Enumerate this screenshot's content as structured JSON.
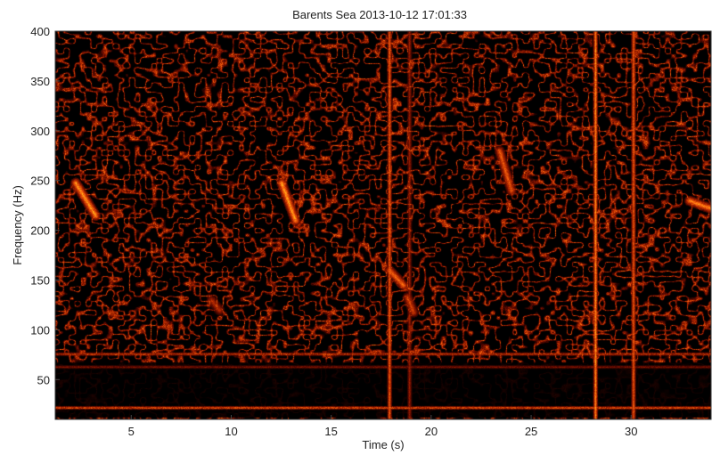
{
  "chart_data": {
    "type": "heatmap",
    "title": "Barents Sea 2013-10-12 17:01:33",
    "xlabel": "Time (s)",
    "ylabel": "Frequency (Hz)",
    "xlim": [
      1.2,
      34
    ],
    "ylim": [
      10,
      400
    ],
    "xticks": [
      5,
      10,
      15,
      20,
      25,
      30
    ],
    "yticks": [
      50,
      100,
      150,
      200,
      250,
      300,
      350,
      400
    ],
    "grid": false,
    "legend": "none",
    "colormap": [
      "#000000",
      "#5a0800",
      "#b42800",
      "#ff6a10",
      "#ffd21e"
    ],
    "background_noise_level": 0.35,
    "low_frequency_quiet_band_hz": [
      12,
      68
    ],
    "tonal_lines": [
      {
        "frequency_hz": 76,
        "intensity": 0.7
      },
      {
        "frequency_hz": 63,
        "intensity": 0.45
      },
      {
        "frequency_hz": 22,
        "intensity": 0.9
      }
    ],
    "broadband_pulses": [
      {
        "time_s": 17.9,
        "intensity": 0.85
      },
      {
        "time_s": 18.9,
        "intensity": 0.5
      },
      {
        "time_s": 28.2,
        "intensity": 1.0
      },
      {
        "time_s": 30.1,
        "intensity": 0.85
      }
    ],
    "calls": [
      {
        "t_start": 2.2,
        "f_start": 248,
        "t_end": 3.2,
        "f_end": 215,
        "intensity": 1.0
      },
      {
        "t_start": 12.5,
        "f_start": 248,
        "t_end": 13.2,
        "f_end": 210,
        "intensity": 1.0
      },
      {
        "t_start": 23.4,
        "f_start": 280,
        "t_end": 24.0,
        "f_end": 240,
        "intensity": 0.8
      },
      {
        "t_start": 32.9,
        "f_start": 230,
        "t_end": 34.0,
        "f_end": 222,
        "intensity": 0.95
      },
      {
        "t_start": 17.9,
        "f_start": 160,
        "t_end": 18.6,
        "f_end": 145,
        "intensity": 0.85
      },
      {
        "t_start": 18.8,
        "f_start": 133,
        "t_end": 19.1,
        "f_end": 118,
        "intensity": 0.7
      },
      {
        "t_start": 9.0,
        "f_start": 130,
        "t_end": 9.4,
        "f_end": 120,
        "intensity": 0.6
      }
    ]
  }
}
